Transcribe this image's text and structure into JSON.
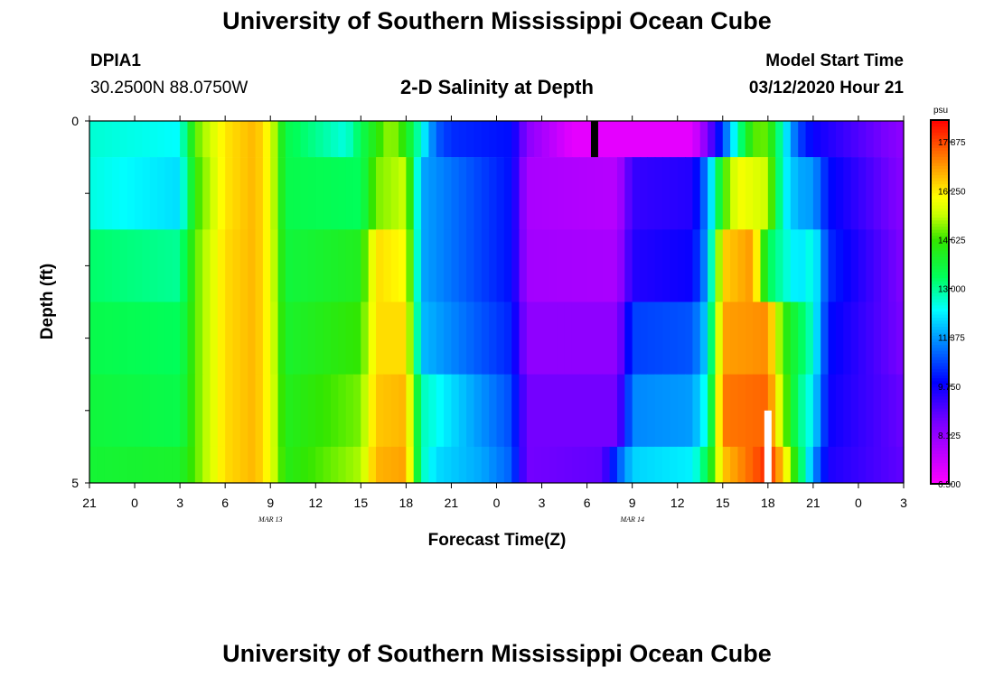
{
  "header": {
    "title": "University of Southern Mississippi Ocean Cube",
    "station_id": "DPIA1",
    "coordinates": "30.2500N 88.0750W",
    "plot_title": "2-D Salinity at Depth",
    "model_label": "Model Start Time",
    "model_time": "03/12/2020 Hour 21"
  },
  "footer": {
    "title": "University of Southern Mississippi Ocean Cube"
  },
  "chart_data": {
    "type": "heatmap",
    "title": "2-D Salinity at Depth",
    "xlabel": "Forecast Time(Z)",
    "ylabel": "Depth (ft)",
    "units": "psu",
    "x_range_hours": [
      0,
      54
    ],
    "ylim": [
      0,
      5
    ],
    "y_tick_labels": [
      "0",
      "5"
    ],
    "x_tick_labels": [
      "21",
      "0",
      "3",
      "6",
      "9",
      "12",
      "15",
      "18",
      "21",
      "0",
      "3",
      "6",
      "9",
      "12",
      "15",
      "18",
      "21",
      "0",
      "3"
    ],
    "date_labels": [
      {
        "text": "MAR 13",
        "hour": 15
      },
      {
        "text": "MAR 14",
        "hour": 39
      }
    ],
    "colorbar": {
      "min": 6.5,
      "max": 18.6,
      "tick_labels": [
        "17.875",
        "16.250",
        "14.625",
        "13.000",
        "11.375",
        "9.750",
        "8.125",
        "6.500"
      ],
      "tick_values": [
        17.875,
        16.25,
        14.625,
        13.0,
        11.375,
        9.75,
        8.125,
        6.5
      ]
    },
    "depth_layers": [
      0,
      1,
      2,
      3,
      4,
      5
    ],
    "layer_profiles": [
      {
        "depth_range": [
          0,
          0.5
        ],
        "keyframes": [
          [
            0,
            12.6
          ],
          [
            6,
            12.3
          ],
          [
            7,
            14.8
          ],
          [
            9,
            16.3
          ],
          [
            11,
            16.8
          ],
          [
            12,
            15.9
          ],
          [
            13,
            13.6
          ],
          [
            17,
            12.5
          ],
          [
            18,
            13.5
          ],
          [
            20,
            15.3
          ],
          [
            21,
            14.3
          ],
          [
            22,
            12.5
          ],
          [
            23,
            10.8
          ],
          [
            24,
            10.3
          ],
          [
            28,
            10.0
          ],
          [
            29,
            8.3
          ],
          [
            32,
            6.9
          ],
          [
            40,
            6.9
          ],
          [
            41,
            8.5
          ],
          [
            42,
            10.5
          ],
          [
            43,
            12.8
          ],
          [
            44,
            14.8
          ],
          [
            45,
            14.9
          ],
          [
            46,
            12.5
          ],
          [
            47,
            10.6
          ],
          [
            48,
            9.8
          ],
          [
            54,
            8.2
          ]
        ]
      },
      {
        "depth_range": [
          0.5,
          1.5
        ],
        "keyframes": [
          [
            0,
            12.5
          ],
          [
            6,
            12.0
          ],
          [
            7,
            14.5
          ],
          [
            9,
            16.3
          ],
          [
            11,
            16.8
          ],
          [
            12,
            15.9
          ],
          [
            13,
            13.6
          ],
          [
            18,
            13.4
          ],
          [
            19,
            15.0
          ],
          [
            21,
            15.5
          ],
          [
            22,
            11.5
          ],
          [
            24,
            11.0
          ],
          [
            28,
            10.0
          ],
          [
            29,
            7.8
          ],
          [
            35,
            7.6
          ],
          [
            36,
            9.3
          ],
          [
            40,
            9.5
          ],
          [
            41,
            11.3
          ],
          [
            42,
            14.5
          ],
          [
            43,
            16.0
          ],
          [
            45,
            15.5
          ],
          [
            46,
            12.4
          ],
          [
            47,
            11.5
          ],
          [
            48,
            11.4
          ],
          [
            49,
            10.0
          ],
          [
            54,
            8.3
          ]
        ]
      },
      {
        "depth_range": [
          1.5,
          2.5
        ],
        "keyframes": [
          [
            0,
            13.3
          ],
          [
            6,
            13.0
          ],
          [
            7,
            14.8
          ],
          [
            9,
            16.4
          ],
          [
            11,
            16.8
          ],
          [
            12,
            15.9
          ],
          [
            13,
            13.8
          ],
          [
            18,
            14.2
          ],
          [
            19,
            16.4
          ],
          [
            21,
            16.0
          ],
          [
            22,
            11.5
          ],
          [
            24,
            11.0
          ],
          [
            28,
            10.0
          ],
          [
            29,
            7.9
          ],
          [
            35,
            7.8
          ],
          [
            36,
            9.5
          ],
          [
            40,
            9.8
          ],
          [
            41,
            11.5
          ],
          [
            42,
            16.5
          ],
          [
            44,
            17.1
          ],
          [
            45,
            13.5
          ],
          [
            47,
            12.0
          ],
          [
            48,
            12.6
          ],
          [
            49,
            10.3
          ],
          [
            54,
            8.4
          ]
        ]
      },
      {
        "depth_range": [
          2.5,
          3.5
        ],
        "keyframes": [
          [
            0,
            13.6
          ],
          [
            6,
            13.4
          ],
          [
            7,
            14.8
          ],
          [
            9,
            16.4
          ],
          [
            11,
            16.8
          ],
          [
            12,
            15.9
          ],
          [
            13,
            14.0
          ],
          [
            18,
            14.6
          ],
          [
            19,
            16.4
          ],
          [
            21,
            16.4
          ],
          [
            22,
            11.7
          ],
          [
            24,
            11.2
          ],
          [
            28,
            10.2
          ],
          [
            29,
            8.2
          ],
          [
            35,
            8.2
          ],
          [
            36,
            10.5
          ],
          [
            40,
            10.7
          ],
          [
            41,
            12.0
          ],
          [
            42,
            17.0
          ],
          [
            45,
            17.2
          ],
          [
            46,
            14.6
          ],
          [
            47,
            13.6
          ],
          [
            48,
            12.6
          ],
          [
            49,
            10.0
          ],
          [
            54,
            8.5
          ]
        ]
      },
      {
        "depth_range": [
          3.5,
          4.5
        ],
        "keyframes": [
          [
            0,
            13.8
          ],
          [
            6,
            13.6
          ],
          [
            7,
            14.8
          ],
          [
            9,
            16.4
          ],
          [
            11,
            16.8
          ],
          [
            12,
            15.9
          ],
          [
            13,
            14.2
          ],
          [
            18,
            15.0
          ],
          [
            19,
            16.6
          ],
          [
            21,
            16.8
          ],
          [
            22,
            12.8
          ],
          [
            24,
            12.0
          ],
          [
            28,
            10.6
          ],
          [
            29,
            8.6
          ],
          [
            35,
            8.6
          ],
          [
            36,
            11.2
          ],
          [
            40,
            11.4
          ],
          [
            41,
            12.6
          ],
          [
            42,
            17.4
          ],
          [
            45,
            17.6
          ],
          [
            46,
            15.2
          ],
          [
            47,
            13.2
          ],
          [
            48,
            12.2
          ],
          [
            49,
            9.8
          ],
          [
            54,
            8.7
          ]
        ]
      },
      {
        "depth_range": [
          4.5,
          5
        ],
        "keyframes": [
          [
            0,
            13.9
          ],
          [
            5,
            14.0
          ],
          [
            6,
            14.0
          ],
          [
            7,
            14.8
          ],
          [
            9,
            16.4
          ],
          [
            11,
            16.8
          ],
          [
            12,
            15.9
          ],
          [
            13,
            14.3
          ],
          [
            18,
            15.3
          ],
          [
            19,
            16.8
          ],
          [
            21,
            17.0
          ],
          [
            22,
            12.8
          ],
          [
            23,
            12.0
          ],
          [
            26,
            11.5
          ],
          [
            28,
            10.8
          ],
          [
            29,
            8.6
          ],
          [
            34,
            8.8
          ],
          [
            35,
            10.6
          ],
          [
            36,
            11.9
          ],
          [
            40,
            12.2
          ],
          [
            41,
            13.6
          ],
          [
            42,
            16.6
          ],
          [
            45,
            18.2
          ],
          [
            46,
            16.6
          ],
          [
            47,
            13.8
          ],
          [
            48,
            11.4
          ],
          [
            49,
            9.6
          ],
          [
            54,
            8.8
          ]
        ]
      }
    ],
    "markers": [
      {
        "hour": 33.5,
        "depth_range": [
          0,
          0.5
        ],
        "color": "#000000"
      },
      {
        "hour": 45,
        "depth_range": [
          4.0,
          5.0
        ],
        "color": "#ffffff"
      }
    ]
  }
}
